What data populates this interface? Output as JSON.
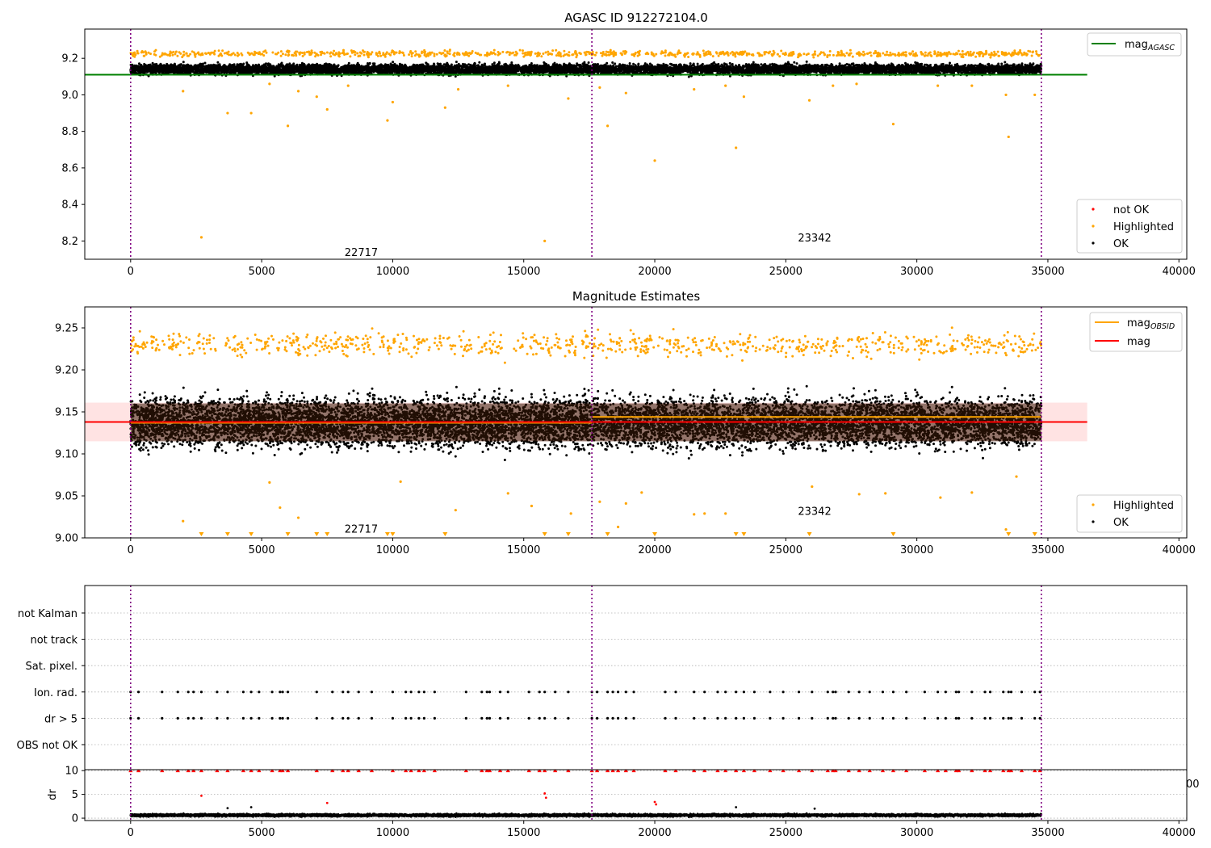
{
  "chart_data": [
    {
      "type": "scatter",
      "title": "AGASC ID 912272104.0",
      "xlabel": "",
      "ylabel": "",
      "xlim": [
        -1750,
        40300
      ],
      "ylim": [
        8.1,
        9.36
      ],
      "xticks": [
        0,
        5000,
        10000,
        15000,
        20000,
        25000,
        30000,
        35000,
        40000
      ],
      "xtick_labels": [
        "0",
        "5000",
        "10000",
        "15000",
        "20000",
        "25000",
        "30000",
        "35000",
        "40000"
      ],
      "yticks": [
        8.2,
        8.4,
        8.6,
        8.8,
        9.0,
        9.2
      ],
      "ytick_labels": [
        "8.2",
        "8.4",
        "8.6",
        "8.8",
        "9.0",
        "9.2"
      ],
      "obs_boundaries": [
        0,
        17600,
        34750
      ],
      "obs_labels": [
        {
          "text": "22717",
          "x": 8800,
          "y": 8.14
        },
        {
          "text": "23342",
          "x": 26100,
          "y": 8.22
        }
      ],
      "series": [
        {
          "name": "not OK",
          "color": "#ff0000",
          "marker": "point",
          "points": []
        },
        {
          "name": "Highlighted",
          "color": "#ffa500",
          "band": {
            "x_range": [
              0,
              34750
            ],
            "y_range": [
              9.19,
              9.26
            ],
            "density": 0.35
          },
          "points": [
            [
              2000,
              9.02
            ],
            [
              2700,
              8.22
            ],
            [
              3700,
              8.9
            ],
            [
              4600,
              8.9
            ],
            [
              5300,
              9.06
            ],
            [
              6000,
              8.83
            ],
            [
              6400,
              9.02
            ],
            [
              7100,
              8.99
            ],
            [
              7500,
              8.92
            ],
            [
              8300,
              9.05
            ],
            [
              9800,
              8.86
            ],
            [
              10000,
              8.96
            ],
            [
              12000,
              8.93
            ],
            [
              12500,
              9.03
            ],
            [
              14400,
              9.05
            ],
            [
              15800,
              8.2
            ],
            [
              16700,
              8.98
            ],
            [
              17900,
              9.04
            ],
            [
              18200,
              8.83
            ],
            [
              18900,
              9.01
            ],
            [
              20000,
              8.64
            ],
            [
              21500,
              9.03
            ],
            [
              22700,
              9.05
            ],
            [
              23100,
              8.71
            ],
            [
              23400,
              8.99
            ],
            [
              25900,
              8.97
            ],
            [
              26800,
              9.05
            ],
            [
              27700,
              9.06
            ],
            [
              29100,
              8.84
            ],
            [
              30800,
              9.05
            ],
            [
              32100,
              9.05
            ],
            [
              33400,
              9.0
            ],
            [
              33500,
              8.77
            ],
            [
              34500,
              9.0
            ]
          ]
        },
        {
          "name": "OK",
          "color": "#000000",
          "band": {
            "x_range": [
              0,
              34750
            ],
            "y_range": [
              9.08,
              9.2
            ],
            "density": 1.0
          },
          "points": []
        }
      ],
      "lines": [
        {
          "name": "mag_AGASC",
          "legend_label": "mag",
          "legend_sub": "AGASC",
          "color": "#008000",
          "x": [
            -1750,
            36500
          ],
          "y": [
            9.11,
            9.11
          ]
        }
      ],
      "legend_top": {
        "position": "top-right",
        "entries": [
          {
            "label": "mag",
            "sub": "AGASC",
            "color": "#008000",
            "kind": "line"
          }
        ]
      },
      "legend_bottom": {
        "position": "bottom-right",
        "entries": [
          {
            "label": "not OK",
            "color": "#ff0000",
            "kind": "dot"
          },
          {
            "label": "Highlighted",
            "color": "#ffa500",
            "kind": "dot"
          },
          {
            "label": "OK",
            "color": "#000000",
            "kind": "dot"
          }
        ]
      }
    },
    {
      "type": "scatter",
      "title": "Magnitude Estimates",
      "xlabel": "",
      "ylabel": "",
      "xlim": [
        -1750,
        40300
      ],
      "ylim": [
        9.0,
        9.275
      ],
      "xticks": [
        0,
        5000,
        10000,
        15000,
        20000,
        25000,
        30000,
        35000,
        40000
      ],
      "xtick_labels": [
        "0",
        "5000",
        "10000",
        "15000",
        "20000",
        "25000",
        "30000",
        "35000",
        "40000"
      ],
      "yticks": [
        9.0,
        9.05,
        9.1,
        9.15,
        9.2,
        9.25
      ],
      "ytick_labels": [
        "9.00",
        "9.05",
        "9.10",
        "9.15",
        "9.20",
        "9.25"
      ],
      "obs_boundaries": [
        0,
        17600,
        34750
      ],
      "obs_labels": [
        {
          "text": "22717",
          "x": 8800,
          "y": 9.011
        },
        {
          "text": "23342",
          "x": 26100,
          "y": 9.032
        }
      ],
      "error_band": {
        "color": "#ff9999",
        "y_range": [
          9.115,
          9.161
        ],
        "x_range": [
          -1750,
          36500
        ]
      },
      "series": [
        {
          "name": "Highlighted",
          "color": "#ffa500",
          "band": {
            "x_range": [
              0,
              34750
            ],
            "y_range": [
              9.2,
              9.26
            ],
            "density": 0.35
          },
          "points": [
            [
              2000,
              9.02
            ],
            [
              5300,
              9.066
            ],
            [
              5700,
              9.036
            ],
            [
              6400,
              9.024
            ],
            [
              10300,
              9.067
            ],
            [
              12400,
              9.033
            ],
            [
              14400,
              9.053
            ],
            [
              15300,
              9.038
            ],
            [
              16800,
              9.029
            ],
            [
              17900,
              9.043
            ],
            [
              18900,
              9.041
            ],
            [
              19500,
              9.054
            ],
            [
              21500,
              9.028
            ],
            [
              21900,
              9.029
            ],
            [
              22700,
              9.029
            ],
            [
              26000,
              9.061
            ],
            [
              27800,
              9.052
            ],
            [
              28800,
              9.053
            ],
            [
              30900,
              9.048
            ],
            [
              32100,
              9.054
            ],
            [
              33400,
              9.01
            ],
            [
              33800,
              9.073
            ],
            [
              18600,
              9.013
            ]
          ],
          "floor_markers": [
            2700,
            3700,
            4600,
            6000,
            7100,
            7500,
            9800,
            10000,
            12000,
            15800,
            16700,
            18200,
            20000,
            23100,
            23400,
            25900,
            29100,
            33500,
            34500
          ]
        },
        {
          "name": "OK",
          "color": "#000000",
          "band": {
            "x_range": [
              0,
              34750
            ],
            "y_range": [
              9.075,
              9.2
            ],
            "density": 1.0
          },
          "points": []
        }
      ],
      "lines": [
        {
          "name": "mag_OBSID_1",
          "color": "#ffa500",
          "x": [
            0,
            17600
          ],
          "y": [
            9.137,
            9.137
          ]
        },
        {
          "name": "mag_OBSID_2",
          "color": "#ffa500",
          "x": [
            17600,
            34750
          ],
          "y": [
            9.144,
            9.144
          ]
        },
        {
          "name": "mag",
          "color": "#ff0000",
          "x": [
            -1750,
            36500
          ],
          "y": [
            9.138,
            9.138
          ]
        }
      ],
      "legend_top": {
        "position": "top-right",
        "entries": [
          {
            "label": "mag",
            "sub": "OBSID",
            "color": "#ffa500",
            "kind": "line"
          },
          {
            "label": "mag",
            "sub": "",
            "color": "#ff0000",
            "kind": "line"
          }
        ]
      },
      "legend_bottom": {
        "position": "bottom-right",
        "entries": [
          {
            "label": "Highlighted",
            "color": "#ffa500",
            "kind": "dot"
          },
          {
            "label": "OK",
            "color": "#000000",
            "kind": "dot"
          }
        ]
      }
    },
    {
      "type": "scatter",
      "title": "",
      "xlabel": "",
      "ylabel": "",
      "xlim": [
        -1750,
        40300
      ],
      "categories": [
        "not Kalman",
        "not track",
        "Sat. pixel.",
        "Ion. rad.",
        "dr > 5",
        "OBS not OK"
      ],
      "obs_boundaries": [
        0,
        17600,
        34750
      ],
      "flag_points": {
        "Ion. rad.": [
          0,
          300,
          1200,
          1800,
          2200,
          2400,
          2700,
          3300,
          3700,
          4300,
          4600,
          4900,
          5400,
          5700,
          5800,
          6000,
          7100,
          7700,
          8100,
          8300,
          8700,
          9200,
          10000,
          10500,
          10700,
          11000,
          11200,
          11600,
          12800,
          13400,
          13600,
          13700,
          14100,
          14400,
          15200,
          15600,
          15800,
          16200,
          16700,
          17600,
          17800,
          18200,
          18400,
          18600,
          18900,
          19200,
          20400,
          20800,
          21500,
          21900,
          22400,
          22700,
          23100,
          23400,
          23800,
          24400,
          24900,
          25500,
          26000,
          26600,
          26800,
          26900,
          27400,
          27800,
          28200,
          28700,
          29100,
          29600,
          30300,
          30800,
          31100,
          31500,
          31600,
          32100,
          32600,
          32800,
          33300,
          33500,
          33600,
          34000,
          34500,
          34700
        ],
        "dr > 5": [
          0,
          300,
          1200,
          1800,
          2200,
          2400,
          2700,
          3300,
          3700,
          4300,
          4600,
          4900,
          5400,
          5700,
          5800,
          6000,
          7100,
          7700,
          8100,
          8300,
          8700,
          9200,
          10000,
          10500,
          10700,
          11000,
          11200,
          11600,
          12800,
          13400,
          13600,
          13700,
          14100,
          14400,
          15200,
          15600,
          15800,
          16200,
          16700,
          17600,
          17800,
          18200,
          18400,
          18600,
          18900,
          19200,
          20400,
          20800,
          21500,
          21900,
          22400,
          22700,
          23100,
          23400,
          23800,
          24400,
          24900,
          25500,
          26000,
          26600,
          26800,
          26900,
          27400,
          27800,
          28200,
          28700,
          29100,
          29600,
          30300,
          30800,
          31100,
          31500,
          31600,
          32100,
          32600,
          32800,
          33300,
          33500,
          33600,
          34000,
          34500,
          34700
        ]
      },
      "flag_color": "#000000"
    },
    {
      "type": "scatter",
      "title": "",
      "xlabel": "",
      "ylabel": "dr",
      "xlim": [
        -1750,
        40300
      ],
      "ylim": [
        -0.5,
        10.2
      ],
      "xticks": [
        0,
        5000,
        10000,
        15000,
        20000,
        25000,
        30000,
        35000,
        40000
      ],
      "xtick_labels": [
        "0",
        "5000",
        "10000",
        "15000",
        "20000",
        "25000",
        "30000",
        "35000",
        "40000"
      ],
      "yticks": [
        0,
        5,
        10
      ],
      "ytick_labels": [
        "0",
        "5",
        "10"
      ],
      "obs_boundaries": [
        0,
        17600,
        34750
      ],
      "stray_label": "00",
      "series": [
        {
          "name": "not OK",
          "color": "#ff0000",
          "points": [
            [
              2700,
              4.7
            ],
            [
              7500,
              3.2
            ],
            [
              15800,
              5.2
            ],
            [
              15850,
              4.3
            ],
            [
              20000,
              3.4
            ],
            [
              20050,
              2.9
            ]
          ],
          "capped_at_10": [
            0,
            300,
            1200,
            1800,
            2200,
            2400,
            2700,
            3300,
            3700,
            4300,
            4600,
            4900,
            5400,
            5700,
            5800,
            6000,
            7100,
            7700,
            8100,
            8300,
            8700,
            9200,
            10000,
            10500,
            10700,
            11000,
            11200,
            11600,
            12800,
            13400,
            13600,
            13700,
            14100,
            14400,
            15200,
            15600,
            15800,
            16200,
            16700,
            17600,
            17800,
            18200,
            18400,
            18600,
            18900,
            19200,
            20400,
            20800,
            21500,
            21900,
            22400,
            22700,
            23100,
            23400,
            23800,
            24400,
            24900,
            25500,
            26000,
            26600,
            26800,
            26900,
            27400,
            27800,
            28200,
            28700,
            29100,
            29600,
            30300,
            30800,
            31100,
            31500,
            31600,
            32100,
            32600,
            32800,
            33300,
            33500,
            33600,
            34000,
            34500,
            34700
          ]
        },
        {
          "name": "OK",
          "color": "#000000",
          "band": {
            "x_range": [
              0,
              34750
            ],
            "y_range": [
              0.05,
              1.2
            ],
            "density": 1.0
          },
          "points": [
            [
              3700,
              2.1
            ],
            [
              4600,
              2.3
            ],
            [
              23100,
              2.3
            ],
            [
              26100,
              2.0
            ]
          ]
        }
      ]
    }
  ]
}
